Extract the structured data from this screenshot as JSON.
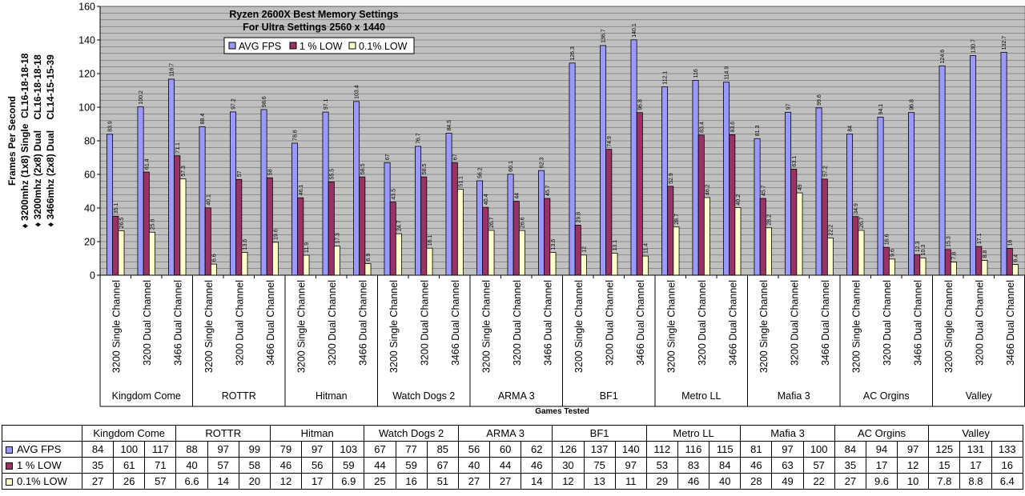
{
  "chart_data": {
    "type": "bar",
    "title": "Ryzen 2600X Best Memory Settings",
    "subtitle": "For Ultra Settings 2560 x 1440",
    "xlabel": "Games Tested",
    "ylabel": "Frames Per Second",
    "ylabel_lines": [
      "♦ 3200mhz (1x8) Single  CL16-18-18-18",
      "♦ 3200mhz (2x8) Dual    CL16-18-18-18",
      "♦ 3466mhz (2x8) Dual    CL14-15-15-39"
    ],
    "ylim": [
      0,
      160
    ],
    "yticks": [
      0,
      20,
      40,
      60,
      80,
      100,
      120,
      140,
      160
    ],
    "grid": true,
    "legend_position": "top-left",
    "games": [
      "Kingdom Come",
      "ROTTR",
      "Hitman",
      "Watch Dogs 2",
      "ARMA 3",
      "BF1",
      "Metro LL",
      "Mafia 3",
      "AC Orgins",
      "Valley"
    ],
    "configs": [
      "3200 Single Channel",
      "3200 Dual Channel",
      "3466 Dual Channel"
    ],
    "series": [
      {
        "name": "AVG FPS",
        "color": "#9999ff",
        "values": [
          [
            83.9,
            100.2,
            116.7
          ],
          [
            88.4,
            97.2,
            98.6
          ],
          [
            78.6,
            97.1,
            103.4
          ],
          [
            67,
            76.7,
            84.5
          ],
          [
            56.2,
            60.1,
            62.3
          ],
          [
            126.3,
            136.7,
            140.1
          ],
          [
            112.1,
            116,
            114.9
          ],
          [
            81.3,
            97,
            99.6
          ],
          [
            84,
            94.1,
            96.8
          ],
          [
            124.6,
            130.7,
            132.7
          ]
        ],
        "labels": [
          [
            "83.9",
            "100.2",
            "116.7"
          ],
          [
            "88.4",
            "97.2",
            "98.6"
          ],
          [
            "78.6",
            "97.1",
            "103.4"
          ],
          [
            "67",
            "76.7",
            "84.5"
          ],
          [
            "56.2",
            "60.1",
            "62.3"
          ],
          [
            "126.3",
            "136.7",
            "140.1"
          ],
          [
            "112.1",
            "116",
            "114.9"
          ],
          [
            "81.3",
            "97",
            "99.6"
          ],
          [
            "84",
            "94.1",
            "96.8"
          ],
          [
            "124.6",
            "130.7",
            "132.7"
          ]
        ]
      },
      {
        "name": "1 % LOW",
        "color": "#993366",
        "values": [
          [
            35.1,
            61.4,
            71.1
          ],
          [
            40.1,
            57,
            58
          ],
          [
            46.1,
            55.5,
            58.5
          ],
          [
            43.5,
            58.5,
            67
          ],
          [
            40.4,
            44,
            45.7
          ],
          [
            29.8,
            74.9,
            96.8
          ],
          [
            52.9,
            83.4,
            83.6
          ],
          [
            45.7,
            63.1,
            57.2
          ],
          [
            34.9,
            16.6,
            12.3
          ],
          [
            15.3,
            17.1,
            16
          ]
        ],
        "labels": [
          [
            "35.1",
            "61.4",
            "71.1"
          ],
          [
            "40.1",
            "57",
            "58"
          ],
          [
            "46.1",
            "55.5",
            "58.5"
          ],
          [
            "43.5",
            "58.5",
            "67"
          ],
          [
            "40.4",
            "44",
            "45.7"
          ],
          [
            "29.8",
            "74.9",
            "96.8"
          ],
          [
            "52.9",
            "83.4",
            "83.6"
          ],
          [
            "45.7",
            "63.1",
            "57.2"
          ],
          [
            "34.9",
            "16.6",
            "12.3"
          ],
          [
            "15.3",
            "17.1",
            "16"
          ]
        ]
      },
      {
        "name": "0.1% LOW",
        "color": "#ffffcc",
        "values": [
          [
            26.5,
            25.6,
            57.3
          ],
          [
            6.6,
            13.6,
            19.6
          ],
          [
            11.9,
            17.3,
            6.9
          ],
          [
            24.7,
            16.1,
            51.1
          ],
          [
            26.7,
            26.6,
            13.6
          ],
          [
            12,
            13.1,
            11.4
          ],
          [
            28.7,
            46.2,
            40.2
          ],
          [
            28.2,
            49,
            22.2
          ],
          [
            26.7,
            9.6,
            10.3
          ],
          [
            7.8,
            8.8,
            6.4
          ]
        ],
        "labels": [
          [
            "26.5",
            "25.6",
            "57.3"
          ],
          [
            "6.6",
            "13.6",
            "19.6"
          ],
          [
            "11.9",
            "17.3",
            "6.9"
          ],
          [
            "24.7",
            "16.1",
            "51.1"
          ],
          [
            "26.7",
            "26.6",
            "13.6"
          ],
          [
            "12",
            "13.1",
            "11.4"
          ],
          [
            "28.7",
            "46.2",
            "40.2"
          ],
          [
            "28.2",
            "49",
            "22.2"
          ],
          [
            "26.7",
            "9.6",
            "10.3"
          ],
          [
            "7.8",
            "8.8",
            "6.4"
          ]
        ]
      }
    ]
  },
  "data_table": {
    "headers": [
      "Kingdom Come",
      "ROTTR",
      "Hitman",
      "Watch Dogs 2",
      "ARMA 3",
      "BF1",
      "Metro LL",
      "Mafia 3",
      "AC Orgins",
      "Valley"
    ],
    "rows": [
      {
        "label": "AVG FPS",
        "color": "#9999ff",
        "cells": [
          [
            "84",
            "100",
            "117"
          ],
          [
            "88",
            "97",
            "99"
          ],
          [
            "79",
            "97",
            "103"
          ],
          [
            "67",
            "77",
            "85"
          ],
          [
            "56",
            "60",
            "62"
          ],
          [
            "126",
            "137",
            "140"
          ],
          [
            "112",
            "116",
            "115"
          ],
          [
            "81",
            "97",
            "100"
          ],
          [
            "84",
            "94",
            "97"
          ],
          [
            "125",
            "131",
            "133"
          ]
        ]
      },
      {
        "label": "1 % LOW",
        "color": "#993366",
        "cells": [
          [
            "35",
            "61",
            "71"
          ],
          [
            "40",
            "57",
            "58"
          ],
          [
            "46",
            "56",
            "59"
          ],
          [
            "44",
            "59",
            "67"
          ],
          [
            "40",
            "44",
            "46"
          ],
          [
            "30",
            "75",
            "97"
          ],
          [
            "53",
            "83",
            "84"
          ],
          [
            "46",
            "63",
            "57"
          ],
          [
            "35",
            "17",
            "12"
          ],
          [
            "15",
            "17",
            "16"
          ]
        ]
      },
      {
        "label": "0.1% LOW",
        "color": "#ffffcc",
        "cells": [
          [
            "27",
            "26",
            "57"
          ],
          [
            "6.6",
            "14",
            "20"
          ],
          [
            "12",
            "17",
            "6.9"
          ],
          [
            "25",
            "16",
            "51"
          ],
          [
            "27",
            "27",
            "14"
          ],
          [
            "12",
            "13",
            "11"
          ],
          [
            "29",
            "46",
            "40"
          ],
          [
            "28",
            "49",
            "22"
          ],
          [
            "27",
            "9.6",
            "10"
          ],
          [
            "7.8",
            "8.8",
            "6.4"
          ]
        ]
      }
    ]
  }
}
